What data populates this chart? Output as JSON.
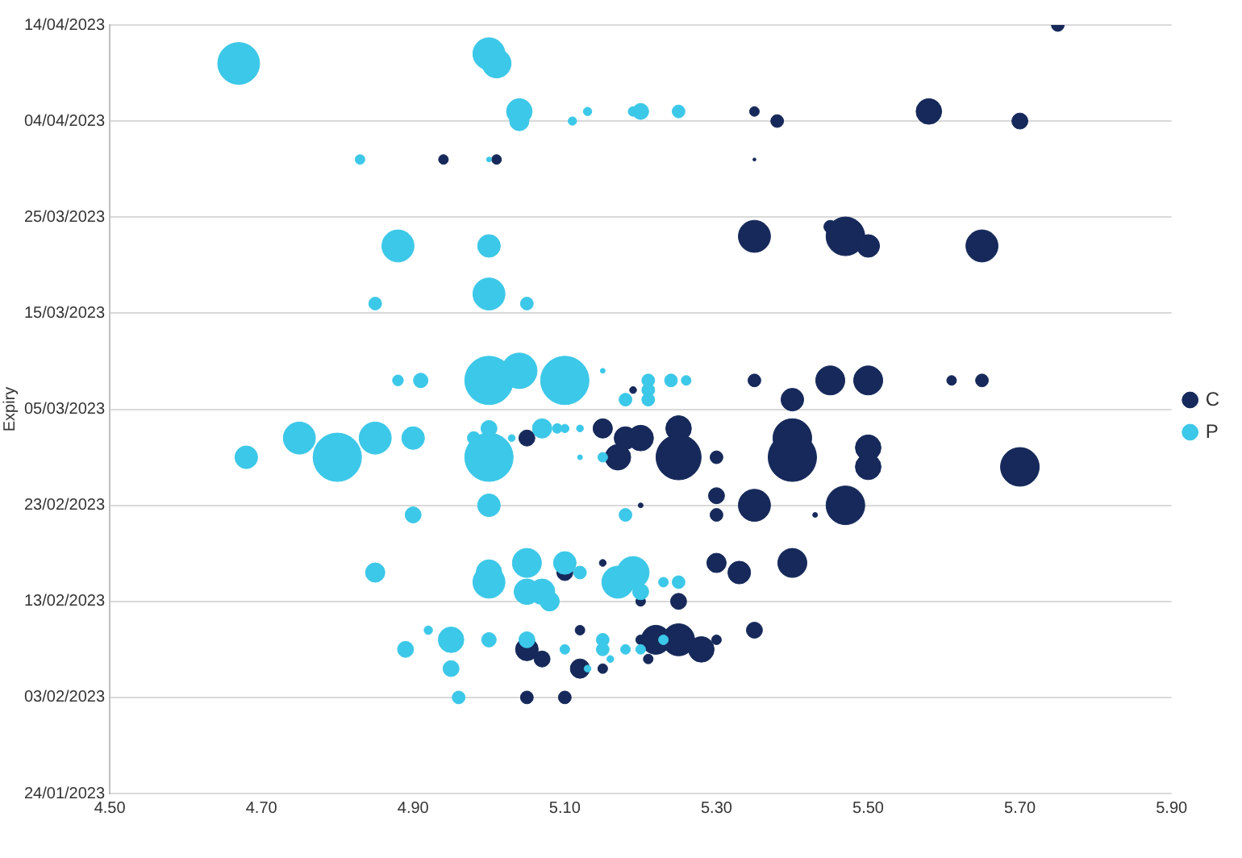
{
  "chart_data": {
    "type": "bubble",
    "orientation": "horizontal",
    "ylabel": "Expiry",
    "legend": "right",
    "grid": "y",
    "xlim": [
      4.5,
      5.9
    ],
    "xticks": [
      {
        "value": 4.5,
        "label": "4.50"
      },
      {
        "value": 4.7,
        "label": "4.70"
      },
      {
        "value": 4.9,
        "label": "4.90"
      },
      {
        "value": 5.1,
        "label": "5.10"
      },
      {
        "value": 5.3,
        "label": "5.30"
      },
      {
        "value": 5.5,
        "label": "5.50"
      },
      {
        "value": 5.7,
        "label": "5.70"
      },
      {
        "value": 5.9,
        "label": "5.90"
      }
    ],
    "ylim": [
      "2023-01-24",
      "2023-04-14"
    ],
    "yticks": [
      {
        "value": "2023-01-24",
        "label": "24/01/2023"
      },
      {
        "value": "2023-02-03",
        "label": "03/02/2023"
      },
      {
        "value": "2023-02-13",
        "label": "13/02/2023"
      },
      {
        "value": "2023-02-23",
        "label": "23/02/2023"
      },
      {
        "value": "2023-03-05",
        "label": "05/03/2023"
      },
      {
        "value": "2023-03-15",
        "label": "15/03/2023"
      },
      {
        "value": "2023-03-25",
        "label": "25/03/2023"
      },
      {
        "value": "2023-04-04",
        "label": "04/04/2023"
      },
      {
        "value": "2023-04-14",
        "label": "14/04/2023"
      }
    ],
    "series": [
      {
        "name": "C",
        "color": "#16295a",
        "values": [
          5.75,
          5.35,
          5.38,
          5.58,
          5.7,
          4.94,
          5.01,
          5.35,
          5.35,
          5.45,
          5.47,
          5.5,
          5.65,
          5.19,
          5.35,
          5.4,
          5.45,
          5.5,
          5.61,
          5.65,
          5.05,
          5.15,
          5.17,
          5.18,
          5.2,
          5.25,
          5.25,
          5.3,
          5.4,
          5.4,
          5.5,
          5.5,
          5.7,
          5.2,
          5.3,
          5.3,
          5.35,
          5.43,
          5.47,
          5.1,
          5.15,
          5.2,
          5.25,
          5.3,
          5.33,
          5.4,
          5.05,
          5.07,
          5.12,
          5.12,
          5.15,
          5.2,
          5.21,
          5.22,
          5.25,
          5.28,
          5.3,
          5.35,
          5.05,
          5.1
        ],
        "x": [
          "2023-04-14",
          "2023-04-05",
          "2023-04-04",
          "2023-04-05",
          "2023-04-04",
          "2023-03-31",
          "2023-03-31",
          "2023-03-31",
          "2023-03-23",
          "2023-03-24",
          "2023-03-23",
          "2023-03-22",
          "2023-03-22",
          "2023-03-07",
          "2023-03-08",
          "2023-03-06",
          "2023-03-08",
          "2023-03-08",
          "2023-03-08",
          "2023-03-08",
          "2023-03-02",
          "2023-03-03",
          "2023-02-28",
          "2023-03-02",
          "2023-03-02",
          "2023-03-03",
          "2023-02-28",
          "2023-02-28",
          "2023-03-02",
          "2023-02-28",
          "2023-03-01",
          "2023-02-27",
          "2023-02-27",
          "2023-02-23",
          "2023-02-24",
          "2023-02-22",
          "2023-02-23",
          "2023-02-22",
          "2023-02-23",
          "2023-02-16",
          "2023-02-17",
          "2023-02-13",
          "2023-02-13",
          "2023-02-17",
          "2023-02-16",
          "2023-02-17",
          "2023-02-08",
          "2023-02-07",
          "2023-02-10",
          "2023-02-06",
          "2023-02-06",
          "2023-02-09",
          "2023-02-07",
          "2023-02-09",
          "2023-02-09",
          "2023-02-08",
          "2023-02-09",
          "2023-02-10",
          "2023-02-03",
          "2023-02-03"
        ],
        "sizes": [
          0.07,
          0.04,
          0.07,
          0.28,
          0.11,
          0.04,
          0.04,
          0.004,
          0.44,
          0.07,
          0.64,
          0.22,
          0.44,
          0.02,
          0.07,
          0.22,
          0.36,
          0.36,
          0.04,
          0.07,
          0.11,
          0.16,
          0.28,
          0.22,
          0.28,
          0.28,
          0.87,
          0.07,
          0.64,
          1,
          0.28,
          0.28,
          0.64,
          0.01,
          0.11,
          0.07,
          0.44,
          0.01,
          0.64,
          0.11,
          0.02,
          0.04,
          0.11,
          0.16,
          0.22,
          0.36,
          0.22,
          0.11,
          0.04,
          0.16,
          0.04,
          0.04,
          0.04,
          0.36,
          0.44,
          0.28,
          0.04,
          0.11,
          0.07,
          0.07
        ]
      },
      {
        "name": "P",
        "color": "#3cc8e8",
        "values": [
          4.67,
          5.0,
          5.01,
          5.04,
          5.04,
          5.11,
          5.13,
          5.19,
          5.2,
          5.25,
          4.83,
          5.0,
          4.88,
          5.0,
          4.85,
          5.0,
          5.05,
          4.88,
          4.91,
          5.0,
          5.04,
          5.1,
          5.15,
          5.21,
          5.21,
          5.18,
          5.21,
          5.24,
          5.26,
          4.68,
          4.75,
          4.8,
          4.85,
          4.9,
          4.98,
          5.0,
          5.0,
          5.03,
          5.07,
          5.09,
          5.1,
          5.12,
          5.12,
          5.15,
          5.0,
          4.9,
          5.18,
          4.85,
          5.0,
          5.0,
          5.05,
          5.05,
          5.07,
          5.08,
          5.1,
          5.12,
          5.19,
          5.17,
          5.2,
          5.23,
          5.25,
          4.92,
          4.95,
          4.89,
          4.95,
          5.0,
          5.05,
          5.1,
          5.13,
          5.15,
          5.15,
          5.16,
          5.18,
          5.2,
          5.23,
          4.96
        ],
        "x": [
          "2023-04-10",
          "2023-04-11",
          "2023-04-10",
          "2023-04-05",
          "2023-04-04",
          "2023-04-04",
          "2023-04-05",
          "2023-04-05",
          "2023-04-05",
          "2023-04-05",
          "2023-03-31",
          "2023-03-31",
          "2023-03-22",
          "2023-03-22",
          "2023-03-16",
          "2023-03-17",
          "2023-03-16",
          "2023-03-08",
          "2023-03-08",
          "2023-03-08",
          "2023-03-09",
          "2023-03-08",
          "2023-03-09",
          "2023-03-08",
          "2023-03-07",
          "2023-03-06",
          "2023-03-06",
          "2023-03-08",
          "2023-03-08",
          "2023-02-28",
          "2023-03-02",
          "2023-02-28",
          "2023-03-02",
          "2023-03-02",
          "2023-03-02",
          "2023-03-03",
          "2023-02-28",
          "2023-03-02",
          "2023-03-03",
          "2023-03-03",
          "2023-03-03",
          "2023-03-03",
          "2023-02-28",
          "2023-02-28",
          "2023-02-23",
          "2023-02-22",
          "2023-02-22",
          "2023-02-16",
          "2023-02-16",
          "2023-02-15",
          "2023-02-17",
          "2023-02-14",
          "2023-02-14",
          "2023-02-13",
          "2023-02-17",
          "2023-02-16",
          "2023-02-16",
          "2023-02-15",
          "2023-02-14",
          "2023-02-15",
          "2023-02-15",
          "2023-02-10",
          "2023-02-09",
          "2023-02-08",
          "2023-02-06",
          "2023-02-09",
          "2023-02-09",
          "2023-02-08",
          "2023-02-06",
          "2023-02-09",
          "2023-02-08",
          "2023-02-07",
          "2023-02-08",
          "2023-02-08",
          "2023-02-09",
          "2023-02-03"
        ],
        "sizes": [
          0.75,
          0.44,
          0.36,
          0.28,
          0.16,
          0.03,
          0.03,
          0.04,
          0.11,
          0.07,
          0.04,
          0.01,
          0.44,
          0.22,
          0.07,
          0.44,
          0.07,
          0.05,
          0.09,
          1,
          0.54,
          1,
          0.01,
          0.07,
          0.07,
          0.07,
          0.07,
          0.07,
          0.04,
          0.22,
          0.44,
          1,
          0.44,
          0.22,
          0.07,
          0.11,
          1,
          0.02,
          0.16,
          0.04,
          0.03,
          0.02,
          0.01,
          0.04,
          0.22,
          0.11,
          0.07,
          0.16,
          0.28,
          0.44,
          0.36,
          0.28,
          0.28,
          0.16,
          0.22,
          0.07,
          0.44,
          0.44,
          0.11,
          0.04,
          0.07,
          0.03,
          0.28,
          0.11,
          0.11,
          0.09,
          0.11,
          0.04,
          0.02,
          0.07,
          0.07,
          0.02,
          0.04,
          0.04,
          0.04,
          0.07
        ]
      }
    ]
  }
}
